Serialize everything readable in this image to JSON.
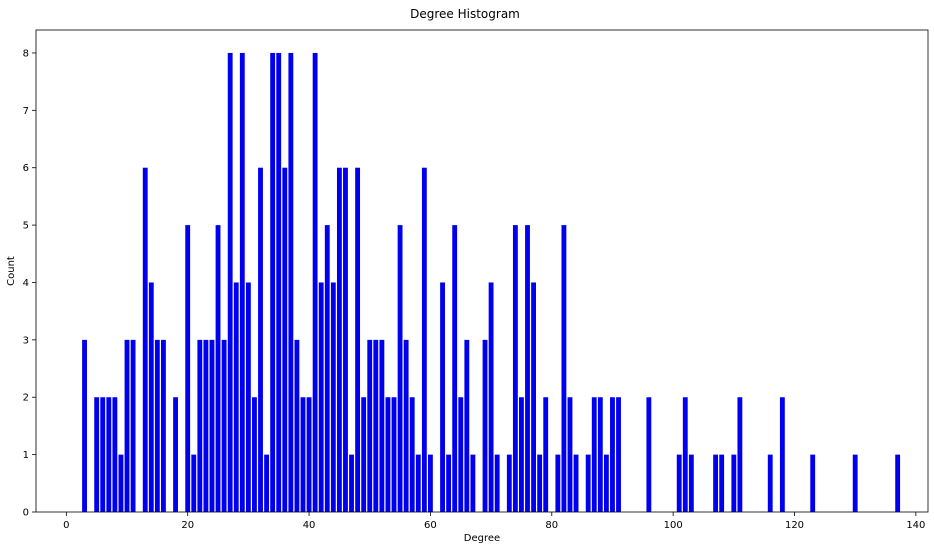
{
  "chart_data": {
    "type": "bar",
    "title": "Degree Histogram",
    "xlabel": "Degree",
    "ylabel": "Count",
    "xlim": [
      -5,
      142
    ],
    "ylim": [
      0,
      8.4
    ],
    "xticks": [
      0,
      20,
      40,
      60,
      80,
      100,
      120,
      140
    ],
    "yticks": [
      0,
      1,
      2,
      3,
      4,
      5,
      6,
      7,
      8
    ],
    "bar_color": "#0000ee",
    "grid": false,
    "x": [
      3,
      5,
      6,
      7,
      8,
      9,
      10,
      11,
      13,
      14,
      15,
      16,
      18,
      20,
      21,
      22,
      23,
      24,
      25,
      26,
      27,
      28,
      29,
      30,
      31,
      32,
      33,
      34,
      35,
      36,
      37,
      38,
      39,
      40,
      41,
      42,
      43,
      44,
      45,
      46,
      47,
      48,
      49,
      50,
      51,
      52,
      53,
      54,
      55,
      56,
      57,
      58,
      59,
      60,
      62,
      63,
      64,
      65,
      66,
      67,
      69,
      70,
      71,
      73,
      74,
      75,
      76,
      77,
      78,
      79,
      81,
      82,
      83,
      84,
      86,
      87,
      88,
      89,
      90,
      91,
      96,
      101,
      102,
      103,
      107,
      108,
      110,
      111,
      116,
      118,
      123,
      130,
      137
    ],
    "values": [
      3,
      2,
      2,
      2,
      2,
      1,
      3,
      3,
      6,
      4,
      3,
      3,
      2,
      5,
      1,
      3,
      3,
      3,
      5,
      3,
      8,
      4,
      8,
      4,
      2,
      6,
      1,
      8,
      8,
      6,
      8,
      3,
      2,
      2,
      8,
      4,
      5,
      4,
      6,
      6,
      1,
      6,
      2,
      3,
      3,
      3,
      2,
      2,
      5,
      3,
      2,
      1,
      6,
      1,
      4,
      1,
      5,
      2,
      3,
      1,
      3,
      4,
      1,
      1,
      5,
      2,
      5,
      4,
      1,
      2,
      1,
      5,
      2,
      1,
      1,
      2,
      2,
      1,
      2,
      2,
      2,
      1,
      2,
      1,
      1,
      1,
      1,
      2,
      1,
      2,
      1,
      1,
      1
    ]
  }
}
